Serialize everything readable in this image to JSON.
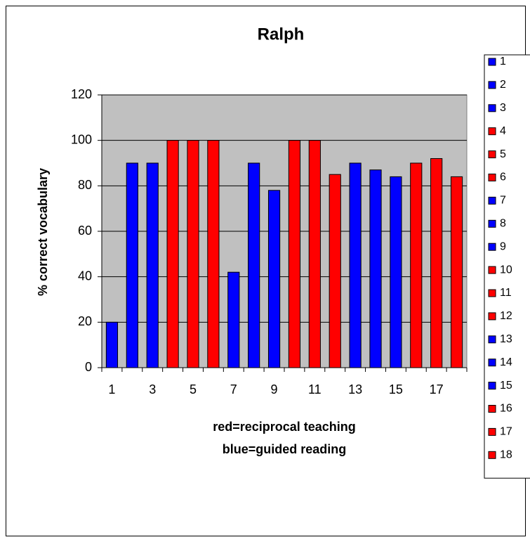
{
  "chart_data": {
    "type": "bar",
    "title": "Ralph",
    "ylabel": "% correct vocabulary",
    "xlabel": [
      "red=reciprocal teaching",
      "blue=guided reading"
    ],
    "categories": [
      1,
      2,
      3,
      4,
      5,
      6,
      7,
      8,
      9,
      10,
      11,
      12,
      13,
      14,
      15,
      16,
      17,
      18
    ],
    "values": [
      20,
      90,
      90,
      100,
      100,
      100,
      42,
      90,
      78,
      100,
      100,
      85,
      90,
      87,
      84,
      90,
      92,
      84
    ],
    "colors": [
      "#0000ff",
      "#0000ff",
      "#0000ff",
      "#ff0000",
      "#ff0000",
      "#ff0000",
      "#0000ff",
      "#0000ff",
      "#0000ff",
      "#ff0000",
      "#ff0000",
      "#ff0000",
      "#0000ff",
      "#0000ff",
      "#0000ff",
      "#ff0000",
      "#ff0000",
      "#ff0000"
    ],
    "xtick_label_step": 2,
    "ylim": [
      0,
      120
    ],
    "yticks": [
      0,
      20,
      40,
      60,
      80,
      100,
      120
    ],
    "grid": true,
    "plot_background": "#c0c0c0",
    "legend": "right"
  }
}
